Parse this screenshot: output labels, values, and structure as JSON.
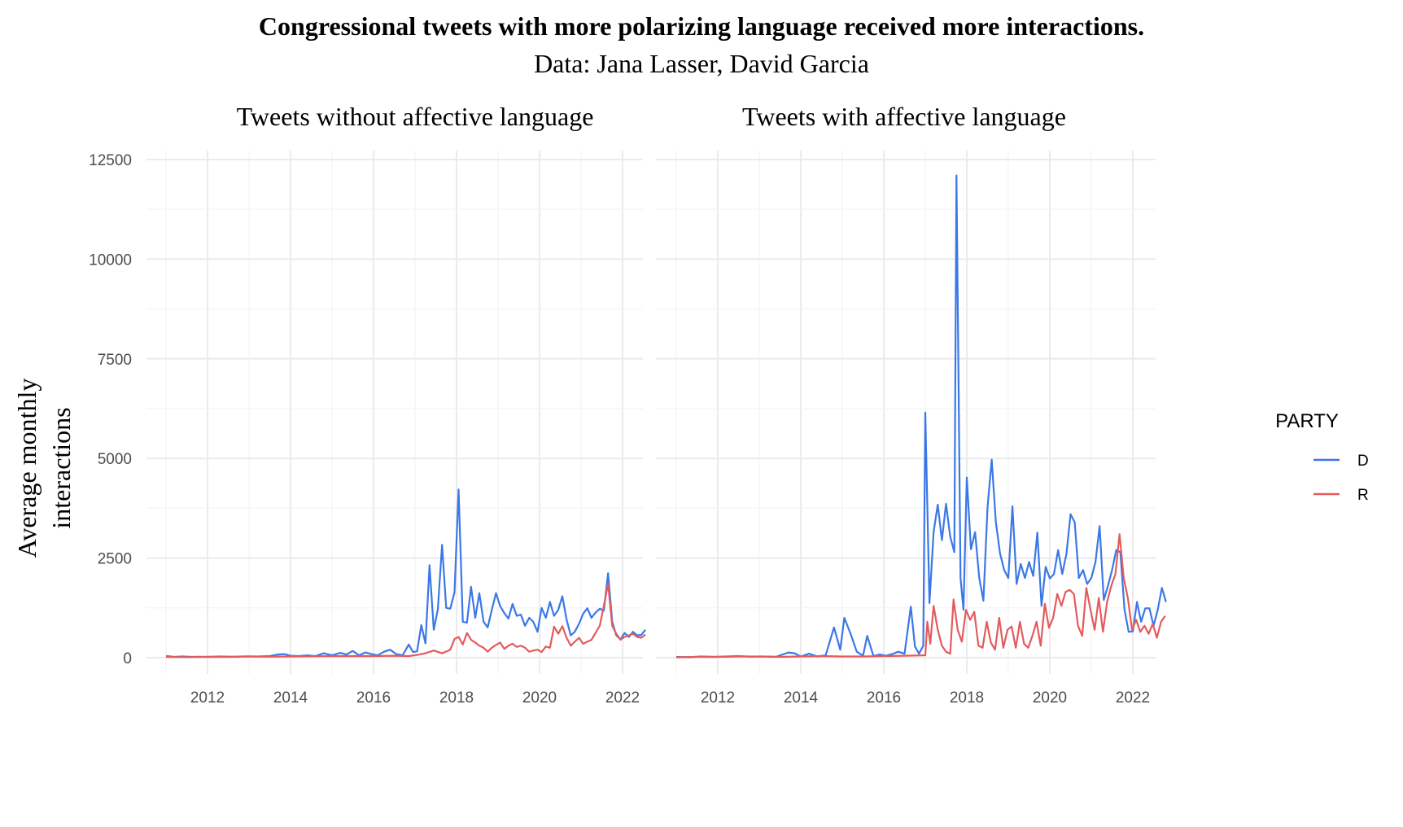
{
  "header": {
    "title": "Congressional tweets with more polarizing language received more interactions.",
    "subtitle": "Data: Jana Lasser, David Garcia"
  },
  "chart_data": {
    "type": "line",
    "ylabel": "Average monthly interactions",
    "ylim": [
      0,
      12500
    ],
    "yticks": [
      0,
      2500,
      5000,
      7500,
      10000,
      12500
    ],
    "xlim": [
      2011,
      2022
    ],
    "xticks": [
      2012,
      2014,
      2016,
      2018,
      2020,
      2022
    ],
    "grid": true,
    "legend": {
      "title": "PARTY",
      "position": "right",
      "entries": [
        {
          "name": "D",
          "color": "#3b78e7"
        },
        {
          "name": "R",
          "color": "#e35b5d"
        }
      ]
    },
    "panels": [
      {
        "title": "Tweets without affective language",
        "series": [
          {
            "name": "D",
            "color": "#3b78e7",
            "points": [
              [
                2011.0,
                40
              ],
              [
                2011.3,
                20
              ],
              [
                2011.6,
                30
              ],
              [
                2011.9,
                20
              ],
              [
                2012.2,
                30
              ],
              [
                2012.5,
                25
              ],
              [
                2012.8,
                35
              ],
              [
                2013.1,
                30
              ],
              [
                2013.4,
                40
              ],
              [
                2013.7,
                60
              ],
              [
                2013.8,
                90
              ],
              [
                2014.0,
                50
              ],
              [
                2014.2,
                40
              ],
              [
                2014.4,
                60
              ],
              [
                2014.6,
                40
              ],
              [
                2014.8,
                110
              ],
              [
                2015.0,
                60
              ],
              [
                2015.2,
                130
              ],
              [
                2015.4,
                80
              ],
              [
                2015.6,
                170
              ],
              [
                2015.7,
                60
              ],
              [
                2015.8,
                120
              ],
              [
                2016.0,
                90
              ],
              [
                2016.2,
                80
              ],
              [
                2016.35,
                120
              ],
              [
                2016.5,
                60
              ],
              [
                2016.6,
                210
              ],
              [
                2016.7,
                130
              ],
              [
                2016.8,
                330
              ],
              [
                2016.92,
                450
              ],
              [
                2017.0,
                150
              ],
              [
                2017.1,
                120
              ],
              [
                2017.25,
                820
              ],
              [
                2017.35,
                360
              ],
              [
                2017.5,
                2320
              ],
              [
                2017.6,
                700
              ],
              [
                2017.7,
                2830
              ],
              [
                2017.85,
                1250
              ],
              [
                2018.0,
                1230
              ],
              [
                2018.1,
                1640
              ],
              [
                2017.55,
                1210
              ],
              [
                2017.9,
                4220
              ],
              [
                2018.05,
                900
              ]
            ]
          },
          {
            "name": "R",
            "color": "#e35b5d",
            "points": [
              [
                2011.0,
                20
              ],
              [
                2012.0,
                20
              ],
              [
                2013.0,
                30
              ],
              [
                2014.0,
                30
              ],
              [
                2015.0,
                40
              ],
              [
                2016.0,
                40
              ],
              [
                2016.8,
                60
              ],
              [
                2017.3,
                120
              ],
              [
                2017.6,
                420
              ],
              [
                2017.9,
                620
              ],
              [
                2018.1,
                400
              ]
            ]
          }
        ]
      },
      {
        "title": "Tweets with affective language",
        "series": [
          {
            "name": "D",
            "color": "#3b78e7",
            "points": []
          },
          {
            "name": "R",
            "color": "#e35b5d",
            "points": []
          }
        ]
      }
    ]
  }
}
